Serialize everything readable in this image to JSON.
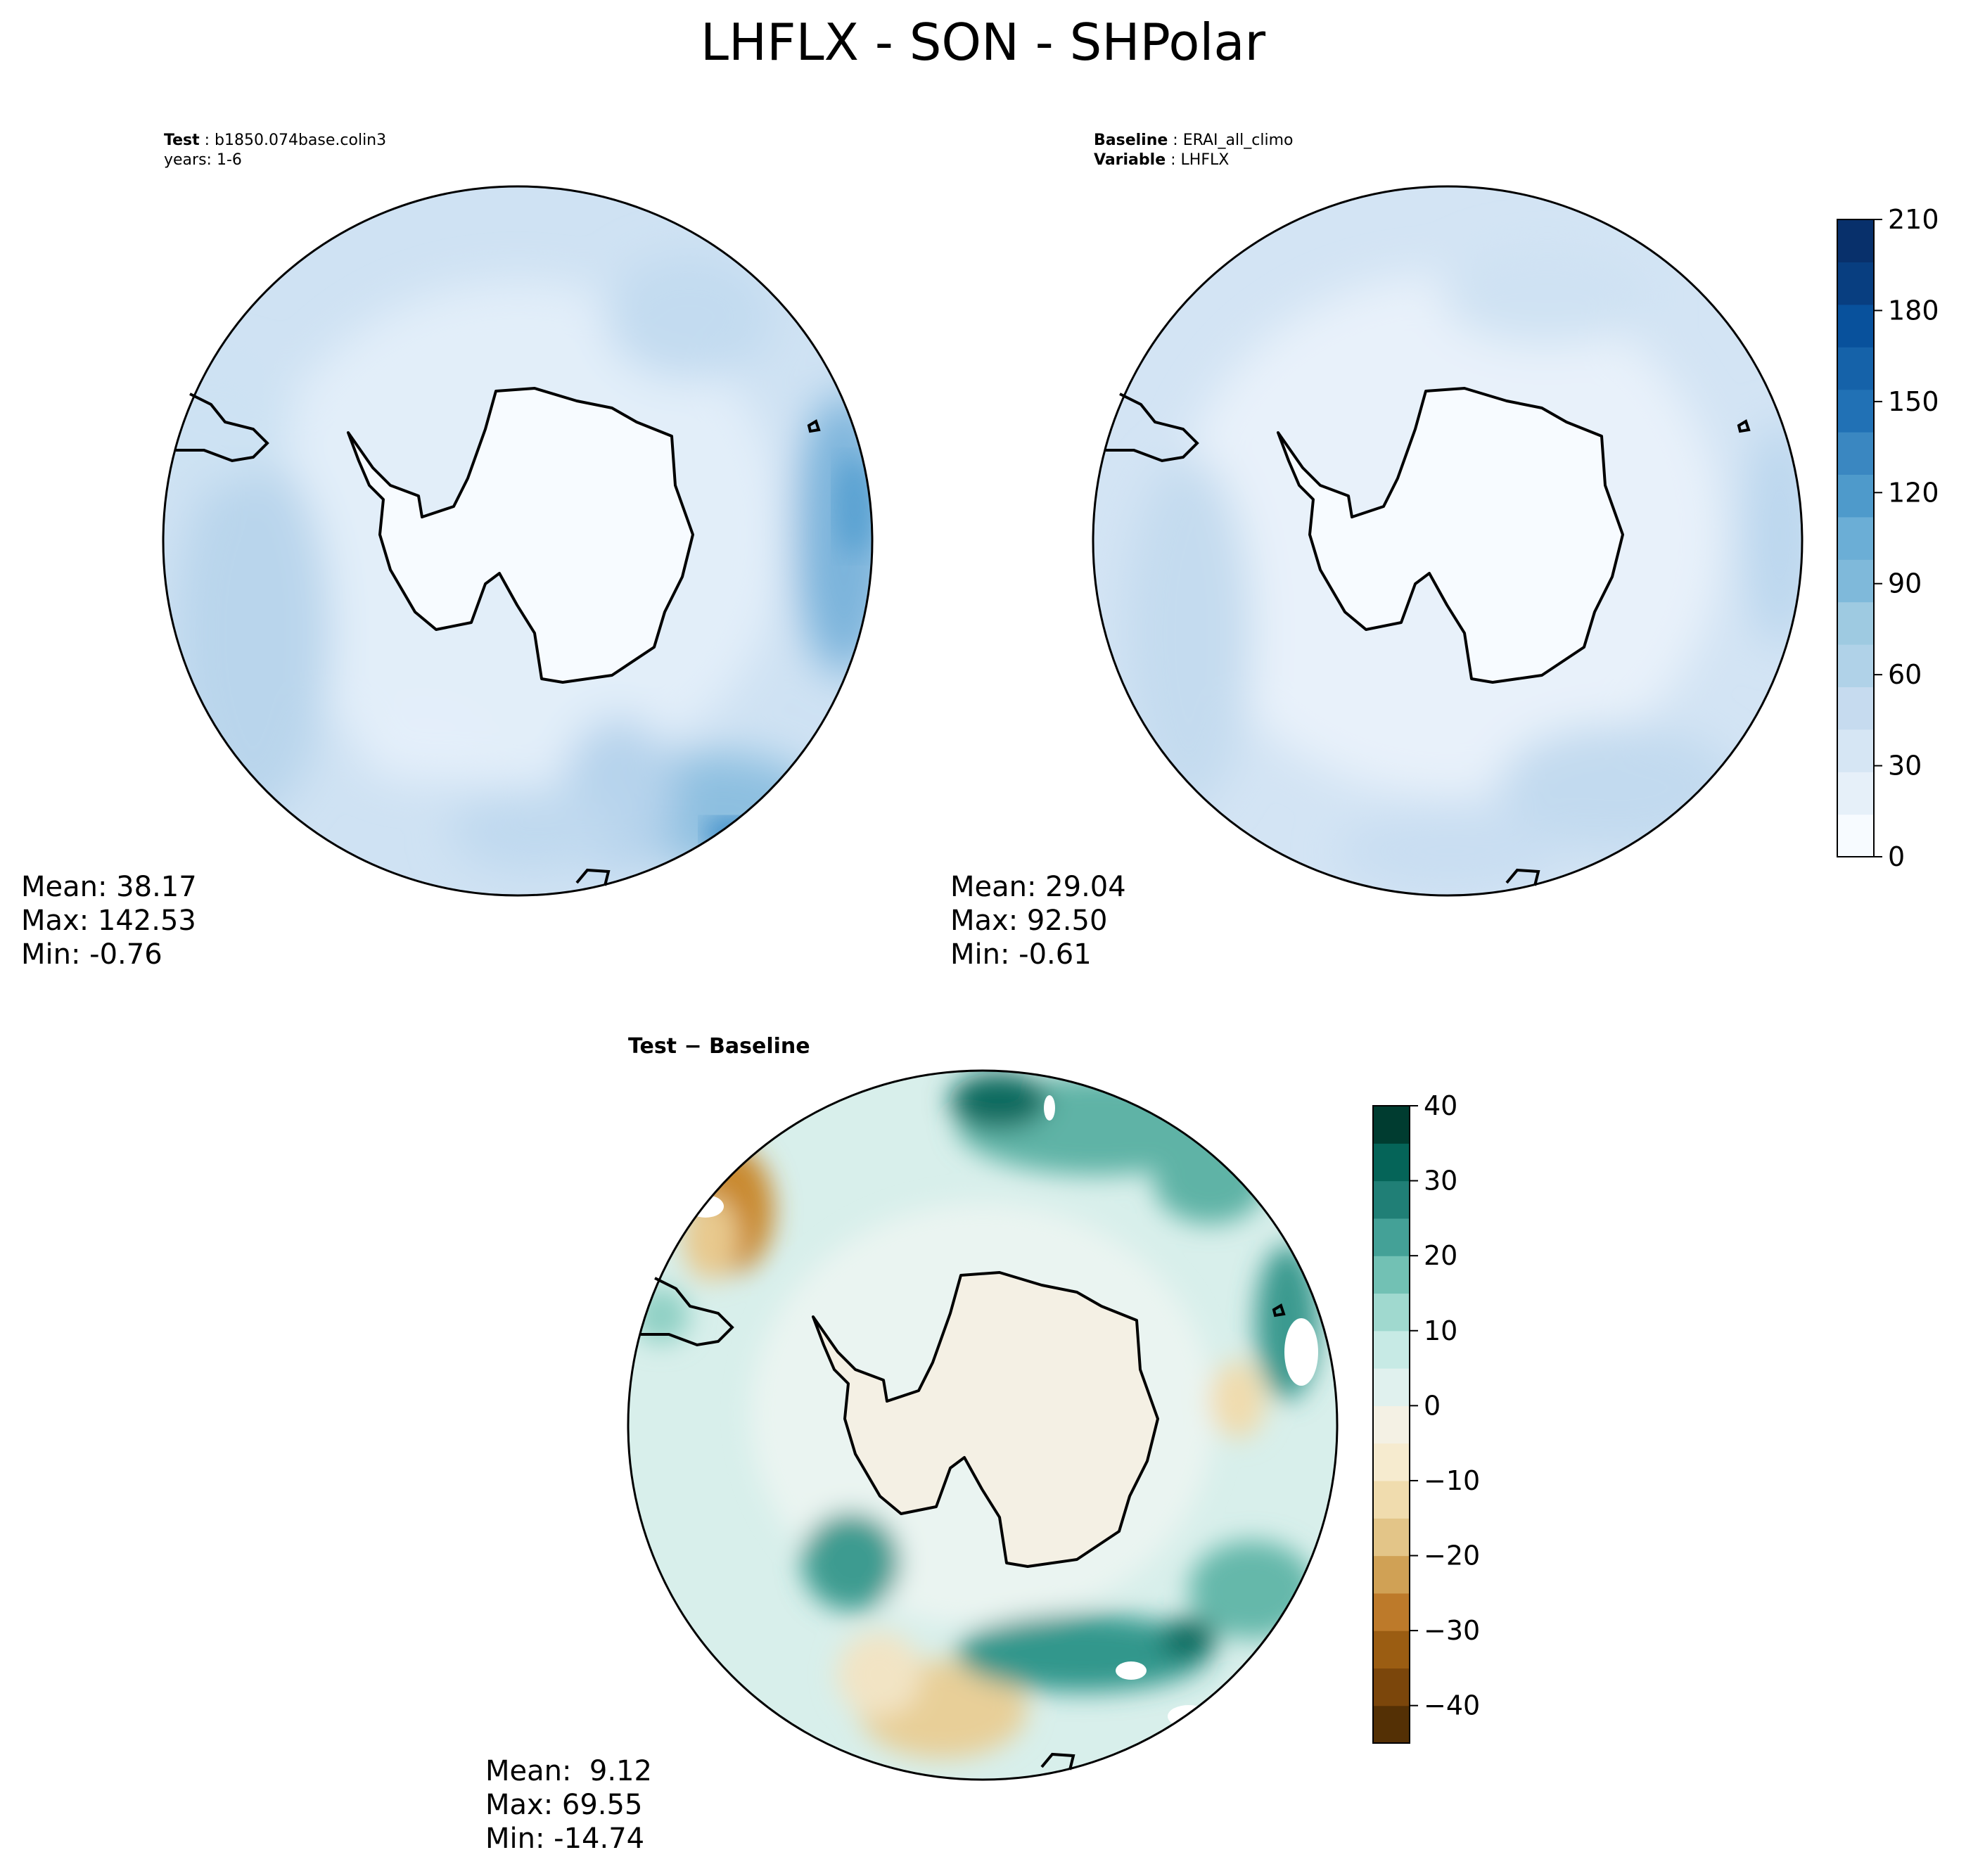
{
  "title": "LHFLX - SON - SHPolar",
  "panels": {
    "test": {
      "label_key": "Test",
      "label_value": "b1850.074base.colin3",
      "line2": "years: 1-6",
      "stats": {
        "mean": "Mean: 38.17",
        "max": "Max: 142.53",
        "min": "Min: -0.76"
      },
      "mean": 38.17,
      "max": 142.53,
      "min": -0.76
    },
    "baseline": {
      "label_key": "Baseline",
      "label_value": "ERAI_all_climo",
      "var_key": "Variable",
      "var_value": "LHFLX",
      "stats": {
        "mean": "Mean: 29.04",
        "max": "Max: 92.50",
        "min": "Min: -0.61"
      },
      "mean": 29.04,
      "max": 92.5,
      "min": -0.61
    },
    "diff": {
      "title": "Test − Baseline",
      "stats": {
        "mean": "Mean:  9.12",
        "max": "Max: 69.55",
        "min": "Min: -14.74"
      },
      "mean": 9.12,
      "max": 69.55,
      "min": -14.74
    }
  },
  "colorbars": {
    "main": {
      "ticks": [
        "0",
        "30",
        "60",
        "90",
        "120",
        "150",
        "180",
        "210"
      ],
      "range": [
        0,
        210
      ],
      "colors": [
        "#f7fbff",
        "#e6f0f9",
        "#d6e6f4",
        "#c6dbef",
        "#b0d2e8",
        "#9ecae1",
        "#7fb9da",
        "#6baed6",
        "#4e9acb",
        "#3a87c1",
        "#2171b5",
        "#1562a9",
        "#08519c",
        "#083e80",
        "#08306b"
      ]
    },
    "diff": {
      "ticks": [
        "40",
        "30",
        "20",
        "10",
        "0",
        "−10",
        "−20",
        "−30",
        "−40"
      ],
      "range": [
        -45,
        40
      ],
      "colors": [
        "#543005",
        "#7b460b",
        "#9b5d12",
        "#bd7a2a",
        "#d0a155",
        "#e3c588",
        "#f0dcae",
        "#f6ebcf",
        "#f4f1e4",
        "#e0f1ee",
        "#c7eae5",
        "#a0d9cf",
        "#72c1b4",
        "#44a197",
        "#207f76",
        "#056458",
        "#003c30"
      ]
    }
  },
  "map_colors": {
    "test_bg": "#d4e5f4",
    "base_bg": "#d8e7f5",
    "diff_bg": "#e4f2ef",
    "land": "#f7fbff",
    "diff_land": "#f4f0e4",
    "coast": "#000000"
  }
}
